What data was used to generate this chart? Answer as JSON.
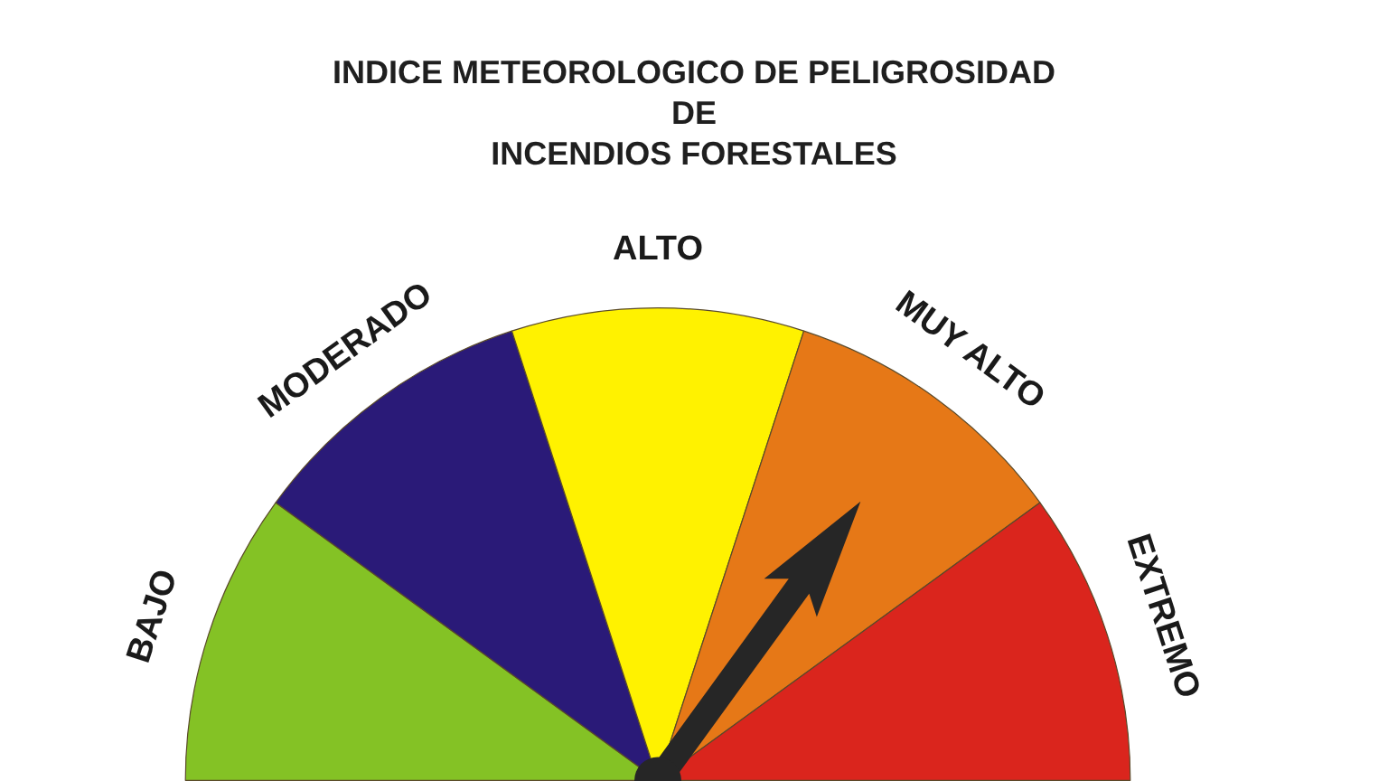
{
  "chart_data": {
    "type": "pie",
    "title": "INDICE METEOROLOGICO DE PELIGROSIDAD\nDE\nINCENDIOS FORESTALES",
    "categories": [
      "BAJO",
      "MODERADO",
      "ALTO",
      "MUY ALTO",
      "EXTREMO"
    ],
    "values": [
      20,
      20,
      20,
      20,
      20
    ],
    "colors": [
      "#84c225",
      "#2a1a78",
      "#fff200",
      "#e67817",
      "#da251d"
    ],
    "needle": "MUY ALTO"
  }
}
